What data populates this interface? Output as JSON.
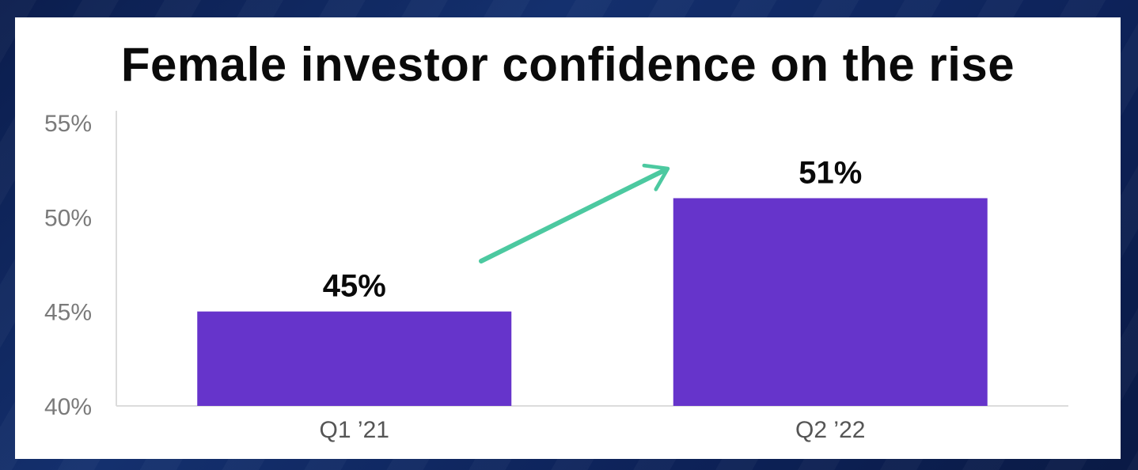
{
  "chart_data": {
    "type": "bar",
    "title": "Female investor confidence on the rise",
    "categories": [
      "Q1 ’21",
      "Q2 ’22"
    ],
    "values": [
      45,
      51
    ],
    "data_labels": [
      "45%",
      "51%"
    ],
    "ylim": [
      40,
      55
    ],
    "yticks": [
      40,
      45,
      50,
      55
    ],
    "ytick_labels": [
      "40%",
      "45%",
      "50%",
      "55%"
    ],
    "xlabel": "",
    "ylabel": "",
    "bar_color": "#6634cb",
    "arrow_color": "#4cc9a0",
    "grid": false,
    "legend": "none"
  }
}
